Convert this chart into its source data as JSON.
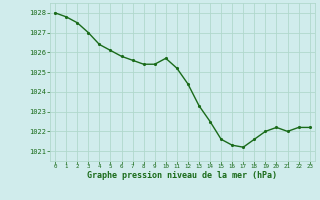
{
  "x": [
    0,
    1,
    2,
    3,
    4,
    5,
    6,
    7,
    8,
    9,
    10,
    11,
    12,
    13,
    14,
    15,
    16,
    17,
    18,
    19,
    20,
    21,
    22,
    23
  ],
  "y": [
    1028.0,
    1027.8,
    1027.5,
    1027.0,
    1026.4,
    1026.1,
    1025.8,
    1025.6,
    1025.4,
    1025.4,
    1025.7,
    1025.2,
    1024.4,
    1023.3,
    1022.5,
    1021.6,
    1021.3,
    1021.2,
    1021.6,
    1022.0,
    1022.2,
    1022.0,
    1022.2,
    1022.2
  ],
  "line_color": "#1a6b1a",
  "marker_color": "#1a6b1a",
  "bg_color": "#d0ecec",
  "grid_color": "#b0d8cc",
  "ylabel_ticks": [
    1021,
    1022,
    1023,
    1024,
    1025,
    1026,
    1027,
    1028
  ],
  "xtick_labels": [
    "0",
    "1",
    "2",
    "3",
    "4",
    "5",
    "6",
    "7",
    "8",
    "9",
    "10",
    "11",
    "12",
    "13",
    "14",
    "15",
    "16",
    "17",
    "18",
    "19",
    "20",
    "21",
    "22",
    "23"
  ],
  "xlabel": "Graphe pression niveau de la mer (hPa)",
  "ylim": [
    1020.5,
    1028.5
  ],
  "xlim": [
    -0.5,
    23.5
  ],
  "xlabel_color": "#1a6b1a",
  "tick_color": "#1a6b1a",
  "marker_size": 2.5,
  "line_width": 1.0,
  "ytick_fontsize": 5.0,
  "xtick_fontsize": 4.2,
  "xlabel_fontsize": 6.0
}
